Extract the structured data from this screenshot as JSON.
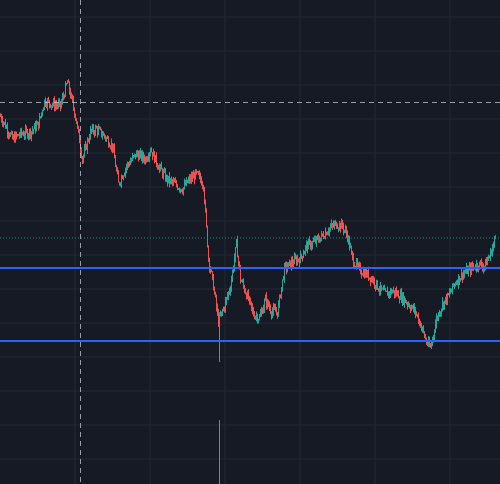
{
  "theme": {
    "background": "#161a25",
    "grid_color": "#232836",
    "up_color": "#26a69a",
    "down_color": "#ef5350",
    "level_line_color": "#2962ff",
    "crosshair_color": "#c8cbd3",
    "last_price_line_color": "#1f8a7e"
  },
  "chart_data": {
    "type": "candlestick",
    "title": "",
    "xlabel": "",
    "ylabel": "",
    "x_index_range": [
      0,
      500
    ],
    "ylim": [
      0,
      484
    ],
    "grid": true,
    "horizontal_levels": [
      {
        "name": "level-upper",
        "value": 216
      },
      {
        "name": "level-lower",
        "value": 143
      }
    ],
    "last_price": 246,
    "crosshair": {
      "x_index": 80,
      "value": 382
    },
    "series": [
      {
        "name": "",
        "anchors": [
          [
            0,
            368
          ],
          [
            12,
            345
          ],
          [
            20,
            350
          ],
          [
            30,
            352
          ],
          [
            38,
            360
          ],
          [
            44,
            383
          ],
          [
            52,
            380
          ],
          [
            60,
            378
          ],
          [
            67,
            402
          ],
          [
            75,
            368
          ],
          [
            82,
            325
          ],
          [
            90,
            352
          ],
          [
            96,
            355
          ],
          [
            104,
            348
          ],
          [
            112,
            338
          ],
          [
            118,
            300
          ],
          [
            126,
            318
          ],
          [
            136,
            330
          ],
          [
            145,
            325
          ],
          [
            150,
            335
          ],
          [
            158,
            318
          ],
          [
            166,
            305
          ],
          [
            174,
            300
          ],
          [
            182,
            295
          ],
          [
            188,
            303
          ],
          [
            196,
            310
          ],
          [
            203,
            300
          ],
          [
            208,
            226
          ],
          [
            213,
            198
          ],
          [
            218,
            162
          ],
          [
            224,
            178
          ],
          [
            230,
            198
          ],
          [
            236,
            240
          ],
          [
            240,
            205
          ],
          [
            246,
            190
          ],
          [
            253,
            170
          ],
          [
            259,
            166
          ],
          [
            265,
            184
          ],
          [
            271,
            173
          ],
          [
            277,
            172
          ],
          [
            284,
            215
          ],
          [
            292,
            222
          ],
          [
            300,
            226
          ],
          [
            306,
            238
          ],
          [
            314,
            242
          ],
          [
            322,
            248
          ],
          [
            328,
            255
          ],
          [
            336,
            260
          ],
          [
            342,
            258
          ],
          [
            347,
            248
          ],
          [
            352,
            225
          ],
          [
            358,
            215
          ],
          [
            366,
            210
          ],
          [
            372,
            205
          ],
          [
            379,
            195
          ],
          [
            385,
            190
          ],
          [
            392,
            193
          ],
          [
            400,
            188
          ],
          [
            408,
            180
          ],
          [
            415,
            172
          ],
          [
            420,
            160
          ],
          [
            426,
            142
          ],
          [
            430,
            136
          ],
          [
            436,
            165
          ],
          [
            442,
            180
          ],
          [
            448,
            188
          ],
          [
            455,
            202
          ],
          [
            462,
            210
          ],
          [
            470,
            215
          ],
          [
            478,
            220
          ],
          [
            484,
            218
          ],
          [
            490,
            230
          ],
          [
            495,
            246
          ]
        ],
        "spikes": [
          {
            "x_index": 219,
            "low": 122
          },
          {
            "x_index": 219,
            "low": 0,
            "high": 64
          }
        ]
      }
    ]
  }
}
